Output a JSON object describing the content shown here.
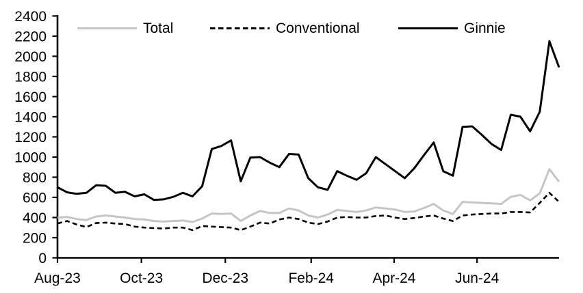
{
  "chart_data": {
    "type": "line",
    "title": "",
    "xlabel": "",
    "ylabel": "",
    "x_unit": "week",
    "x_range_weeks": 52,
    "ylim": [
      0,
      2400
    ],
    "y_ticks": [
      0,
      200,
      400,
      600,
      800,
      1000,
      1200,
      1400,
      1600,
      1800,
      2000,
      2200,
      2400
    ],
    "x_ticks": [
      {
        "label": "Aug-23",
        "week": 0
      },
      {
        "label": "Oct-23",
        "week": 8.7
      },
      {
        "label": "Dec-23",
        "week": 17.4
      },
      {
        "label": "Feb-24",
        "week": 26.3
      },
      {
        "label": "Apr-24",
        "week": 34.9
      },
      {
        "label": "Jun-24",
        "week": 43.5
      }
    ],
    "grid": false,
    "legend_position": "top",
    "axis_color": "#000000",
    "series": [
      {
        "name": "Total",
        "style": "solid",
        "color": "#c5c5c5",
        "values": [
          400,
          405,
          385,
          375,
          410,
          420,
          410,
          400,
          385,
          380,
          365,
          360,
          365,
          370,
          355,
          390,
          440,
          435,
          440,
          365,
          420,
          465,
          445,
          445,
          490,
          470,
          420,
          400,
          430,
          475,
          465,
          455,
          470,
          500,
          490,
          480,
          455,
          460,
          495,
          535,
          470,
          435,
          555,
          550,
          545,
          540,
          535,
          605,
          625,
          570,
          640,
          880,
          755
        ]
      },
      {
        "name": "Conventional",
        "style": "dashed",
        "color": "#000000",
        "values": [
          340,
          365,
          330,
          305,
          345,
          350,
          340,
          335,
          310,
          300,
          295,
          290,
          300,
          300,
          275,
          315,
          310,
          305,
          300,
          275,
          310,
          350,
          340,
          380,
          400,
          385,
          350,
          335,
          360,
          400,
          405,
          400,
          400,
          415,
          420,
          400,
          385,
          395,
          410,
          420,
          390,
          365,
          420,
          430,
          435,
          440,
          440,
          455,
          455,
          450,
          545,
          645,
          555
        ]
      },
      {
        "name": "Ginnie",
        "style": "solid",
        "color": "#000000",
        "values": [
          700,
          650,
          635,
          645,
          720,
          715,
          645,
          655,
          610,
          630,
          575,
          580,
          605,
          645,
          610,
          710,
          1080,
          1110,
          1165,
          760,
          995,
          1000,
          945,
          900,
          1030,
          1025,
          790,
          700,
          675,
          860,
          815,
          775,
          840,
          1000,
          930,
          860,
          790,
          890,
          1020,
          1145,
          860,
          815,
          1300,
          1305,
          1220,
          1130,
          1070,
          1420,
          1400,
          1255,
          1450,
          2150,
          1890
        ]
      }
    ]
  }
}
